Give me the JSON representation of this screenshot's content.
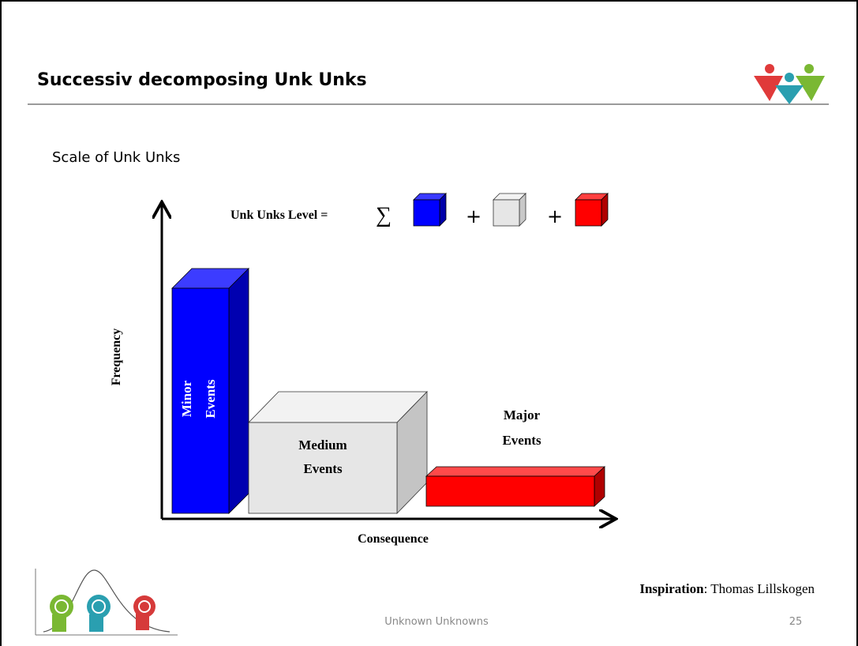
{
  "header": {
    "title": "Successiv decomposing Unk Unks"
  },
  "subtitle": "Scale of Unk Unks",
  "formula": {
    "label": "Unk Unks Level =",
    "sum": "∑",
    "plus": [
      "+",
      "+"
    ]
  },
  "axes": {
    "y_label": "Frequency",
    "x_label": "Consequence"
  },
  "blocks": [
    {
      "label": [
        "Minor",
        "Events"
      ]
    },
    {
      "label": [
        "Medium",
        "Events"
      ]
    },
    {
      "label": [
        "Major",
        "Events"
      ]
    }
  ],
  "credit": {
    "label": "Inspiration",
    "text": ": Thomas Lillskogen"
  },
  "footer": {
    "text": "Unknown Unknowns",
    "page": "25"
  }
}
